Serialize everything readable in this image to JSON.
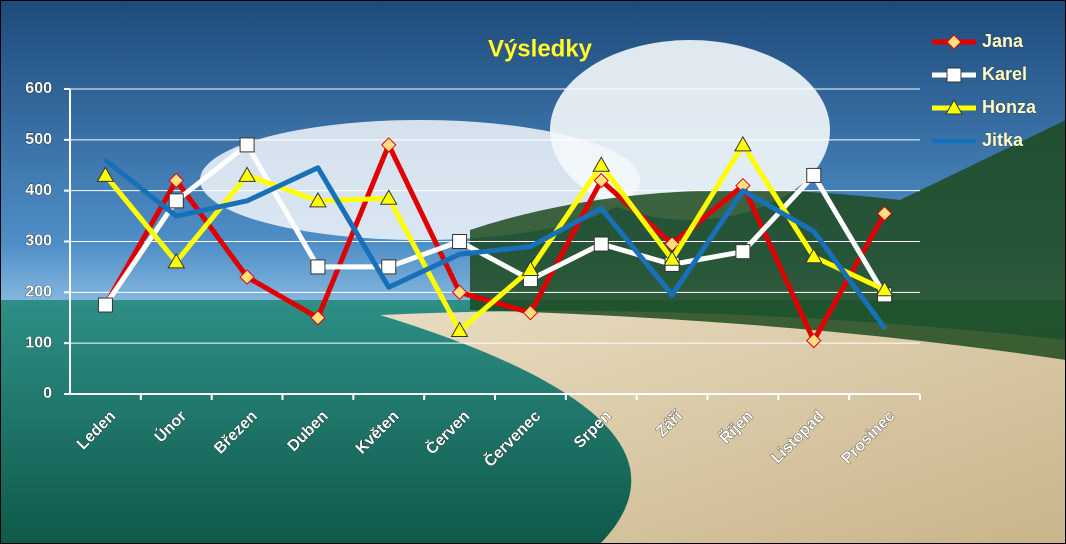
{
  "chart_data": {
    "type": "line",
    "title": "Výsledky",
    "categories": [
      "Leden",
      "Únor",
      "Březen",
      "Duben",
      "Květen",
      "Červen",
      "Červenec",
      "Srpen",
      "Září",
      "Říjen",
      "Listopad",
      "Prosinec"
    ],
    "series": [
      {
        "name": "Jana",
        "color": "#e00000",
        "marker": "diamond",
        "values": [
          175,
          420,
          230,
          150,
          490,
          200,
          160,
          420,
          295,
          410,
          105,
          355
        ]
      },
      {
        "name": "Karel",
        "color": "#ffffff",
        "marker": "square",
        "values": [
          175,
          380,
          490,
          250,
          250,
          300,
          225,
          295,
          255,
          280,
          430,
          195
        ]
      },
      {
        "name": "Honza",
        "color": "#ffff00",
        "marker": "triangle",
        "values": [
          430,
          260,
          430,
          380,
          385,
          125,
          245,
          450,
          265,
          490,
          270,
          205
        ]
      },
      {
        "name": "Jitka",
        "color": "#1870b8",
        "marker": "none",
        "values": [
          460,
          350,
          380,
          445,
          210,
          275,
          290,
          365,
          195,
          400,
          320,
          130
        ]
      }
    ],
    "ylim": [
      0,
      600
    ],
    "yticks": [
      0,
      100,
      200,
      300,
      400,
      500,
      600
    ],
    "grid": true,
    "legend": "top-right"
  }
}
